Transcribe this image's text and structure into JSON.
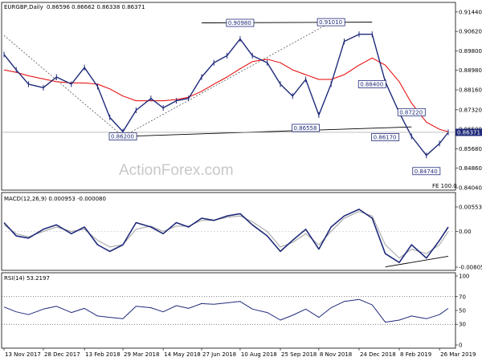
{
  "header": {
    "symbol": "EURGBP,Daily",
    "ohlc": "0.86596 0.86662 0.86338 0.86371"
  },
  "watermark": "ActionForex.com",
  "chart_data": [
    {
      "type": "line",
      "panel": "price",
      "ylim": [
        0.8404,
        0.9174
      ],
      "y_ticks": [
        "0.91440",
        "0.90620",
        "0.89800",
        "0.88980",
        "0.88160",
        "0.87320",
        "0.86500",
        "0.85680",
        "0.84860",
        "0.84040"
      ],
      "y_tick_values": [
        0.9144,
        0.9062,
        0.898,
        0.8898,
        0.8816,
        0.8732,
        0.865,
        0.8568,
        0.8486,
        0.8404
      ],
      "current_price_label": "0.86371",
      "current_price": 0.86371,
      "fe_label": "FE 100.0",
      "colors": {
        "price": "#1f2a7a",
        "ma": "#e60000",
        "trendline": "#000000",
        "guide": "#222222",
        "box_border": "#1f2a7a"
      },
      "x": [
        "2017-11-13",
        "2017-11-27",
        "2017-12-11",
        "2017-12-28",
        "2018-01-12",
        "2018-01-29",
        "2018-02-13",
        "2018-02-28",
        "2018-03-14",
        "2018-03-29",
        "2018-04-13",
        "2018-04-30",
        "2018-05-14",
        "2018-05-29",
        "2018-06-12",
        "2018-06-27",
        "2018-07-11",
        "2018-07-26",
        "2018-08-10",
        "2018-08-24",
        "2018-09-10",
        "2018-09-25",
        "2018-10-09",
        "2018-10-24",
        "2018-11-08",
        "2018-11-22",
        "2018-12-07",
        "2018-12-24",
        "2019-01-08",
        "2019-01-23",
        "2019-02-08",
        "2019-02-22",
        "2019-03-11",
        "2019-03-26",
        "2019-04-05"
      ],
      "series": [
        {
          "values": [
            0.8965,
            0.89,
            0.884,
            0.8825,
            0.887,
            0.884,
            0.891,
            0.883,
            0.87,
            0.864,
            0.873,
            0.878,
            0.874,
            0.877,
            0.878,
            0.887,
            0.893,
            0.896,
            0.903,
            0.896,
            0.893,
            0.884,
            0.879,
            0.886,
            0.871,
            0.884,
            0.902,
            0.905,
            0.905,
            0.885,
            0.872,
            0.862,
            0.854,
            0.859,
            0.8637
          ]
        },
        {
          "values": [
            0.89,
            0.889,
            0.8875,
            0.8862,
            0.885,
            0.8845,
            0.8845,
            0.884,
            0.882,
            0.879,
            0.877,
            0.877,
            0.877,
            0.8775,
            0.8785,
            0.881,
            0.884,
            0.887,
            0.8905,
            0.8935,
            0.8945,
            0.893,
            0.89,
            0.888,
            0.886,
            0.886,
            0.888,
            0.892,
            0.895,
            0.892,
            0.885,
            0.876,
            0.868,
            0.865,
            0.864
          ]
        }
      ],
      "levels": [
        {
          "label": "0.90980",
          "value": 0.9098,
          "x": "2018-08-10"
        },
        {
          "label": "0.91010",
          "value": 0.9101,
          "x": "2018-11-22"
        },
        {
          "label": "0.88400",
          "value": 0.884,
          "x": "2019-01-08"
        },
        {
          "label": "0.87220",
          "value": 0.8722,
          "x": "2019-02-22"
        },
        {
          "label": "0.86558",
          "value": 0.86558,
          "x": "2018-10-24"
        },
        {
          "label": "0.86170",
          "value": 0.8617,
          "x": "2019-01-23"
        },
        {
          "label": "0.86200",
          "value": 0.862,
          "x": "2018-03-29"
        },
        {
          "label": "0.84740",
          "value": 0.8474,
          "x": "2019-03-11"
        }
      ],
      "trendlines": [
        {
          "from": [
            "2017-11-13",
            0.9045
          ],
          "to": [
            "2018-03-29",
            0.862
          ],
          "style": "dashed"
        },
        {
          "from": [
            "2018-03-29",
            0.862
          ],
          "to": [
            "2018-11-22",
            0.9101
          ],
          "style": "dashed"
        },
        {
          "from": [
            "2018-03-29",
            0.862
          ],
          "to": [
            "2019-02-22",
            0.866
          ],
          "style": "solid"
        },
        {
          "from": [
            "2018-06-27",
            0.9098
          ],
          "to": [
            "2019-01-08",
            0.9101
          ],
          "style": "solid"
        }
      ]
    },
    {
      "type": "line",
      "panel": "macd",
      "label": "MACD(12,26,9) 0.000953 -0.000080",
      "ylim": [
        -0.00805,
        0.00553
      ],
      "y_ticks": [
        "0.005534",
        "0.00",
        "-0.008050"
      ],
      "y_tick_values": [
        0.00553,
        0.0,
        -0.00805
      ],
      "colors": {
        "macd": "#1f2a7a",
        "signal": "#a0a0a0",
        "trendline": "#000000"
      },
      "x": [
        "2017-11-13",
        "2017-11-27",
        "2017-12-11",
        "2017-12-28",
        "2018-01-12",
        "2018-01-29",
        "2018-02-13",
        "2018-02-28",
        "2018-03-14",
        "2018-03-29",
        "2018-04-13",
        "2018-04-30",
        "2018-05-14",
        "2018-05-29",
        "2018-06-12",
        "2018-06-27",
        "2018-07-11",
        "2018-07-26",
        "2018-08-10",
        "2018-08-24",
        "2018-09-10",
        "2018-09-25",
        "2018-10-09",
        "2018-10-24",
        "2018-11-08",
        "2018-11-22",
        "2018-12-07",
        "2018-12-24",
        "2019-01-08",
        "2019-01-23",
        "2019-02-08",
        "2019-02-22",
        "2019-03-11",
        "2019-03-26",
        "2019-04-05"
      ],
      "series": [
        {
          "values": [
            0.002,
            -0.001,
            -0.0015,
            0.0005,
            0.0015,
            -0.0005,
            0.001,
            -0.003,
            -0.0045,
            -0.003,
            0.002,
            0.001,
            -0.0005,
            0.002,
            0.001,
            0.003,
            0.0025,
            0.0035,
            0.004,
            0.0015,
            -0.001,
            -0.0045,
            -0.002,
            0.0005,
            -0.004,
            0.001,
            0.0035,
            0.005,
            0.003,
            -0.005,
            -0.007,
            -0.003,
            -0.006,
            -0.002,
            0.001
          ]
        },
        {
          "values": [
            0.0015,
            -0.0005,
            -0.0012,
            0.0,
            0.001,
            0.0,
            0.0005,
            -0.002,
            -0.0035,
            -0.003,
            0.0005,
            0.0012,
            0.0,
            0.0012,
            0.0012,
            0.0025,
            0.0025,
            0.0032,
            0.0035,
            0.0022,
            0.0,
            -0.0035,
            -0.0025,
            -0.0005,
            -0.003,
            0.0,
            0.003,
            0.0045,
            0.0035,
            -0.003,
            -0.006,
            -0.004,
            -0.005,
            -0.003,
            0.0
          ]
        }
      ],
      "trendlines": [
        {
          "from": [
            "2019-01-23",
            -0.008
          ],
          "to": [
            "2019-04-05",
            -0.0056
          ],
          "style": "solid"
        }
      ]
    },
    {
      "type": "line",
      "panel": "rsi",
      "label": "RSI(14) 53.2197",
      "ylim": [
        0,
        100
      ],
      "y_ticks": [
        "100",
        "70",
        "50",
        "30",
        "0"
      ],
      "y_tick_values": [
        100,
        70,
        50,
        30,
        0
      ],
      "colors": {
        "rsi": "#1f2a7a",
        "guide": "#000000"
      },
      "x": [
        "2017-11-13",
        "2017-11-27",
        "2017-12-11",
        "2017-12-28",
        "2018-01-12",
        "2018-01-29",
        "2018-02-13",
        "2018-02-28",
        "2018-03-14",
        "2018-03-29",
        "2018-04-13",
        "2018-04-30",
        "2018-05-14",
        "2018-05-29",
        "2018-06-12",
        "2018-06-27",
        "2018-07-11",
        "2018-07-26",
        "2018-08-10",
        "2018-08-24",
        "2018-09-10",
        "2018-09-25",
        "2018-10-09",
        "2018-10-24",
        "2018-11-08",
        "2018-11-22",
        "2018-12-07",
        "2018-12-24",
        "2019-01-08",
        "2019-01-23",
        "2019-02-08",
        "2019-02-22",
        "2019-03-11",
        "2019-03-26",
        "2019-04-05"
      ],
      "series": [
        {
          "values": [
            55,
            48,
            44,
            52,
            56,
            47,
            53,
            42,
            40,
            38,
            56,
            54,
            48,
            57,
            53,
            60,
            59,
            61,
            63,
            52,
            47,
            36,
            43,
            52,
            40,
            54,
            63,
            66,
            58,
            33,
            36,
            42,
            38,
            44,
            53
          ]
        }
      ]
    }
  ],
  "x_axis": {
    "labels": [
      "13 Nov 2017",
      "28 Dec 2017",
      "13 Feb 2018",
      "29 Mar 2018",
      "14 May 2018",
      "27 Jun 2018",
      "10 Aug 2018",
      "25 Sep 2018",
      "8 Nov 2018",
      "24 Dec 2018",
      "8 Feb 2019",
      "26 Mar 2019"
    ],
    "dates": [
      "2017-11-13",
      "2017-12-28",
      "2018-02-13",
      "2018-03-29",
      "2018-05-14",
      "2018-06-27",
      "2018-08-10",
      "2018-09-25",
      "2018-11-08",
      "2018-12-24",
      "2019-02-08",
      "2019-03-26"
    ]
  }
}
